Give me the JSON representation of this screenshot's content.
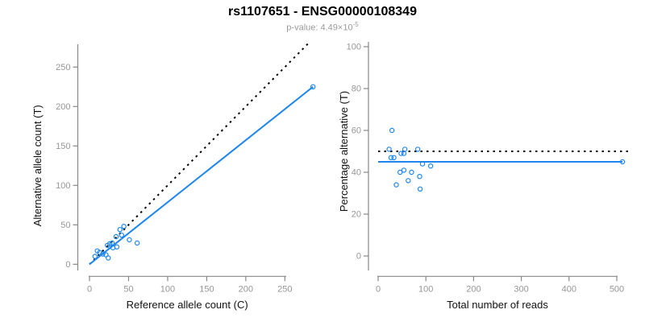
{
  "header": {
    "title": "rs1107651 - ENSG00000108349",
    "subtitle_prefix": "p-value: 4.49×10",
    "subtitle_exponent": "-5"
  },
  "colors": {
    "point_and_fit_blue": "#1C86EE",
    "expected_line_black": "#000000",
    "axis_line": "#888888",
    "tick_label": "#969696",
    "axis_title": "#111111",
    "title": "#000000",
    "subtitle": "#9b9b9b"
  },
  "chart_data": [
    {
      "id": "allele-counts-scatter",
      "type": "scatter",
      "xlabel": "Reference allele count (C)",
      "ylabel": "Alternative allele count (T)",
      "xlim": [
        0,
        250
      ],
      "ylim": [
        0,
        250
      ],
      "x_ticks": [
        0,
        50,
        100,
        150,
        200,
        250
      ],
      "y_ticks": [
        0,
        50,
        100,
        150,
        200,
        250
      ],
      "grid": false,
      "points": [
        [
          7,
          10
        ],
        [
          10,
          17
        ],
        [
          13,
          15
        ],
        [
          17,
          13
        ],
        [
          21,
          12
        ],
        [
          23,
          24
        ],
        [
          24,
          8
        ],
        [
          26,
          26
        ],
        [
          29,
          27
        ],
        [
          30,
          21
        ],
        [
          34,
          35
        ],
        [
          35,
          22
        ],
        [
          39,
          44
        ],
        [
          41,
          37
        ],
        [
          44,
          48
        ],
        [
          51,
          31
        ],
        [
          61,
          27
        ],
        [
          286,
          225
        ]
      ],
      "lines": [
        {
          "name": "expected-identity-line",
          "style": "dotted",
          "color": "#000000",
          "from": [
            0,
            0
          ],
          "to": [
            281,
            281
          ]
        },
        {
          "name": "fitted-line",
          "style": "solid",
          "color": "#1C86EE",
          "from": [
            0,
            0
          ],
          "to": [
            286,
            225
          ]
        }
      ]
    },
    {
      "id": "percentage-scatter",
      "type": "scatter",
      "xlabel": "Total number of reads",
      "ylabel": "Percentage alternative (T)",
      "xlim": [
        0,
        500
      ],
      "ylim": [
        0,
        100
      ],
      "x_ticks": [
        0,
        100,
        200,
        300,
        400,
        500
      ],
      "y_ticks": [
        0,
        20,
        40,
        60,
        80,
        100
      ],
      "grid": false,
      "points": [
        [
          23,
          51
        ],
        [
          27,
          47
        ],
        [
          29,
          60
        ],
        [
          33,
          47
        ],
        [
          38,
          34
        ],
        [
          46,
          40
        ],
        [
          48,
          49
        ],
        [
          54,
          49
        ],
        [
          54,
          41
        ],
        [
          56,
          51
        ],
        [
          63,
          36
        ],
        [
          70,
          40
        ],
        [
          83,
          51
        ],
        [
          87,
          38
        ],
        [
          88,
          32
        ],
        [
          93,
          44
        ],
        [
          110,
          43
        ],
        [
          512,
          45
        ]
      ],
      "lines": [
        {
          "name": "expected-50pct-line",
          "style": "dotted",
          "color": "#000000",
          "from": [
            0,
            50
          ],
          "to": [
            525,
            50
          ]
        },
        {
          "name": "fitted-proportion-line",
          "style": "solid",
          "color": "#1C86EE",
          "from": [
            0,
            45
          ],
          "to": [
            512,
            45
          ]
        }
      ]
    }
  ]
}
